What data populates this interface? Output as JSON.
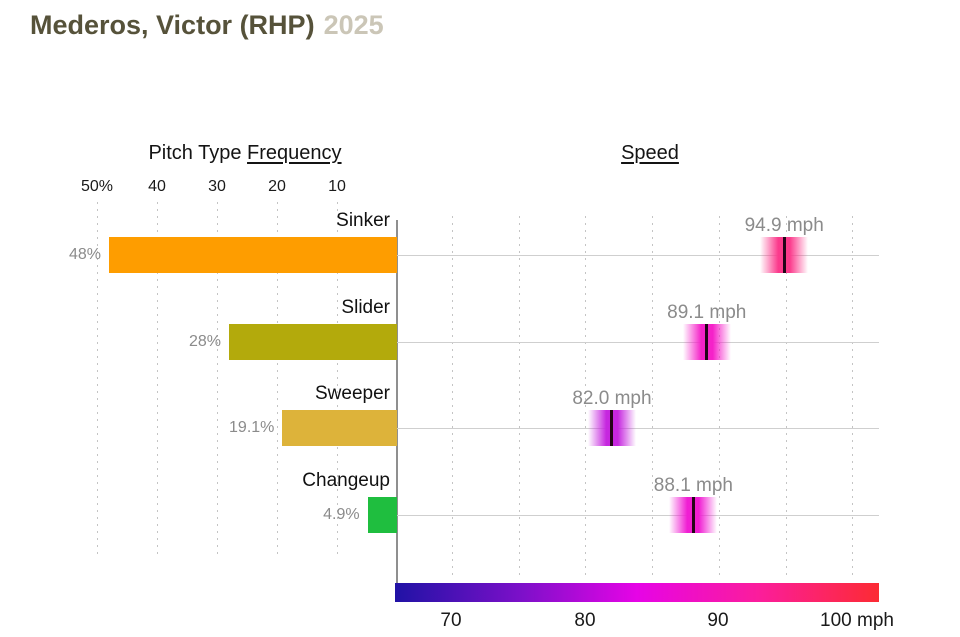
{
  "title": {
    "player": "Mederos, Victor (RHP)",
    "season": "2025"
  },
  "frequency_chart": {
    "header_prefix": "Pitch Type",
    "header_underlined": "Frequency",
    "axis_ticks": [
      "50%",
      "40",
      "30",
      "20",
      "10"
    ],
    "axis_tick_values": [
      50,
      40,
      30,
      20,
      10
    ]
  },
  "speed_chart": {
    "header": "Speed",
    "axis_ticks": [
      "70",
      "80",
      "90",
      "100 mph"
    ],
    "axis_tick_values": [
      70,
      80,
      90,
      100
    ],
    "axis_range_mph": [
      65.9,
      102
    ],
    "colorbar_colors": [
      "#2012A5",
      "#7C10C9",
      "#E604E6",
      "#FB1D9C",
      "#FC2B33"
    ]
  },
  "pitches": [
    {
      "name": "Sinker",
      "frequency_pct": 48,
      "frequency_label": "48%",
      "speed_mph": 94.9,
      "speed_label": "94.9 mph",
      "bar_color": "#FE9D00",
      "marker_color": "#FB3A8C"
    },
    {
      "name": "Slider",
      "frequency_pct": 28,
      "frequency_label": "28%",
      "speed_mph": 89.1,
      "speed_label": "89.1 mph",
      "bar_color": "#B3AA0C",
      "marker_color": "#F522C9"
    },
    {
      "name": "Sweeper",
      "frequency_pct": 19.1,
      "frequency_label": "19.1%",
      "speed_mph": 82.0,
      "speed_label": "82.0 mph",
      "bar_color": "#DDB33A",
      "marker_color": "#C627DF"
    },
    {
      "name": "Changeup",
      "frequency_pct": 4.9,
      "frequency_label": "4.9%",
      "speed_mph": 88.1,
      "speed_label": "88.1 mph",
      "bar_color": "#1FBE3F",
      "marker_color": "#F01ED3"
    }
  ],
  "chart_data": [
    {
      "type": "bar",
      "orientation": "horizontal",
      "title": "Pitch Type Frequency",
      "categories": [
        "Sinker",
        "Slider",
        "Sweeper",
        "Changeup"
      ],
      "values": [
        48,
        28,
        19.1,
        4.9
      ],
      "value_labels": [
        "48%",
        "28%",
        "19.1%",
        "4.9%"
      ],
      "bar_colors": [
        "#FE9D00",
        "#B3AA0C",
        "#DDB33A",
        "#1FBE3F"
      ],
      "xlabel": "Frequency (%)",
      "xlim": [
        50,
        0
      ],
      "axis_ticks": [
        50,
        40,
        30,
        20,
        10
      ],
      "grid": true,
      "notes": "Axis reversed: 50% at left, bars grow leftward from shared category axis"
    },
    {
      "type": "scatter",
      "title": "Speed",
      "categories": [
        "Sinker",
        "Slider",
        "Sweeper",
        "Changeup"
      ],
      "values": [
        94.9,
        89.1,
        82.0,
        88.1
      ],
      "value_labels": [
        "94.9 mph",
        "89.1 mph",
        "82.0 mph",
        "88.1 mph"
      ],
      "xlabel": "Speed (mph)",
      "xlim": [
        65.9,
        102
      ],
      "axis_ticks": [
        70,
        80,
        90,
        100
      ],
      "grid": true,
      "colorbar": {
        "range_mph": [
          65.9,
          102
        ],
        "colors": [
          "#2012A5",
          "#7C10C9",
          "#E604E6",
          "#FB1D9C",
          "#FC2B33"
        ]
      }
    }
  ]
}
